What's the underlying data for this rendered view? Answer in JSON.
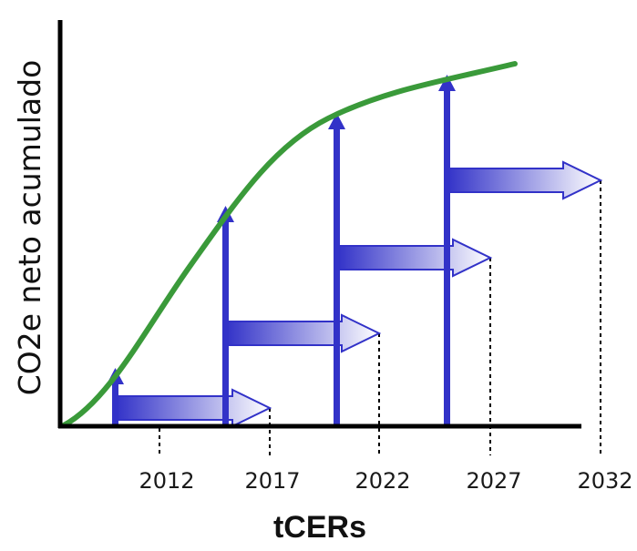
{
  "diagram": {
    "y_axis_label": "CO2e neto acumulado",
    "x_axis_label": "tCERs",
    "tick_labels": [
      "2012",
      "2017",
      "2022",
      "2027",
      "2032"
    ],
    "colors": {
      "curve": "#3a9a3a",
      "arrow": "#3232c8",
      "arrow_fade": "#ffffff",
      "axis": "#000000"
    }
  }
}
